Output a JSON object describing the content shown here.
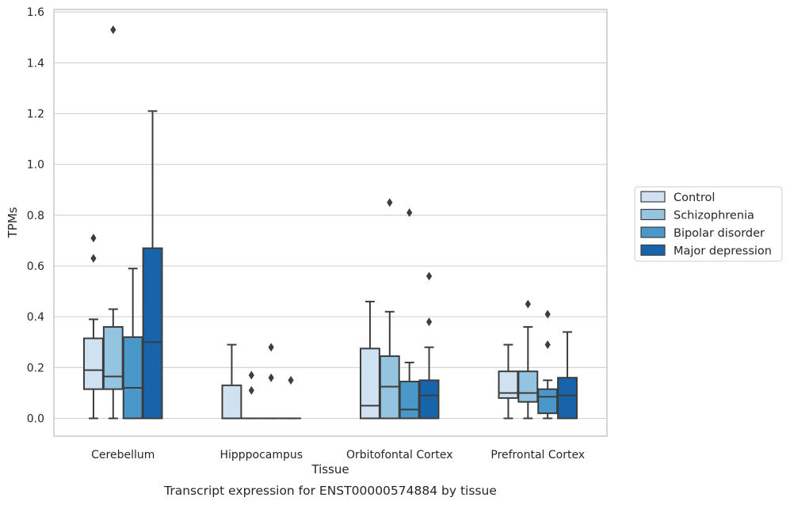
{
  "caption": "Transcript expression for ENST00000574884 by tissue",
  "chart_data": {
    "type": "box",
    "title": "",
    "xlabel": "Tissue",
    "ylabel": "TPMs",
    "ylim": [
      -0.07,
      1.61
    ],
    "yticks": [
      0.0,
      0.2,
      0.4,
      0.6,
      0.8,
      1.0,
      1.2,
      1.4,
      1.6
    ],
    "ytick_labels": [
      "0.0",
      "0.2",
      "0.4",
      "0.6",
      "0.8",
      "1.0",
      "1.2",
      "1.4",
      "1.6"
    ],
    "grid": "horizontal",
    "legend_position": "right",
    "categories": [
      "Cerebellum",
      "Hipppocampus",
      "Orbitofontal Cortex",
      "Prefrontal Cortex"
    ],
    "series": [
      {
        "name": "Control",
        "color": "#d0e1f2",
        "boxes": [
          {
            "whislo": 0.0,
            "q1": 0.115,
            "med": 0.19,
            "q3": 0.315,
            "whishi": 0.39,
            "fliers": [
              0.71,
              0.63
            ]
          },
          {
            "whislo": 0.0,
            "q1": 0.0,
            "med": 0.0,
            "q3": 0.13,
            "whishi": 0.29,
            "fliers": []
          },
          {
            "whislo": 0.0,
            "q1": 0.0,
            "med": 0.05,
            "q3": 0.275,
            "whishi": 0.46,
            "fliers": []
          },
          {
            "whislo": 0.0,
            "q1": 0.08,
            "med": 0.1,
            "q3": 0.185,
            "whishi": 0.29,
            "fliers": []
          }
        ]
      },
      {
        "name": "Schizophrenia",
        "color": "#94c4df",
        "boxes": [
          {
            "whislo": 0.0,
            "q1": 0.115,
            "med": 0.165,
            "q3": 0.36,
            "whishi": 0.43,
            "fliers": [
              1.53
            ]
          },
          {
            "whislo": 0.0,
            "q1": 0.0,
            "med": 0.0,
            "q3": 0.0,
            "whishi": 0.0,
            "fliers": [
              0.17,
              0.11
            ]
          },
          {
            "whislo": 0.0,
            "q1": 0.0,
            "med": 0.125,
            "q3": 0.245,
            "whishi": 0.42,
            "fliers": [
              0.85
            ]
          },
          {
            "whislo": 0.0,
            "q1": 0.065,
            "med": 0.1,
            "q3": 0.185,
            "whishi": 0.36,
            "fliers": [
              0.45
            ]
          }
        ]
      },
      {
        "name": "Bipolar disorder",
        "color": "#4a98c9",
        "boxes": [
          {
            "whislo": 0.0,
            "q1": 0.0,
            "med": 0.12,
            "q3": 0.32,
            "whishi": 0.59,
            "fliers": []
          },
          {
            "whislo": 0.0,
            "q1": 0.0,
            "med": 0.0,
            "q3": 0.0,
            "whishi": 0.0,
            "fliers": [
              0.28,
              0.16
            ]
          },
          {
            "whislo": 0.0,
            "q1": 0.0,
            "med": 0.035,
            "q3": 0.145,
            "whishi": 0.22,
            "fliers": [
              0.81
            ]
          },
          {
            "whislo": 0.0,
            "q1": 0.02,
            "med": 0.085,
            "q3": 0.115,
            "whishi": 0.15,
            "fliers": [
              0.41,
              0.29
            ]
          }
        ]
      },
      {
        "name": "Major depression",
        "color": "#1764ab",
        "boxes": [
          {
            "whislo": 0.0,
            "q1": 0.0,
            "med": 0.3,
            "q3": 0.67,
            "whishi": 1.21,
            "fliers": []
          },
          {
            "whislo": 0.0,
            "q1": 0.0,
            "med": 0.0,
            "q3": 0.0,
            "whishi": 0.0,
            "fliers": [
              0.15
            ]
          },
          {
            "whislo": 0.0,
            "q1": 0.0,
            "med": 0.09,
            "q3": 0.15,
            "whishi": 0.28,
            "fliers": [
              0.56,
              0.38
            ]
          },
          {
            "whislo": 0.0,
            "q1": 0.0,
            "med": 0.09,
            "q3": 0.16,
            "whishi": 0.34,
            "fliers": []
          }
        ]
      }
    ]
  }
}
